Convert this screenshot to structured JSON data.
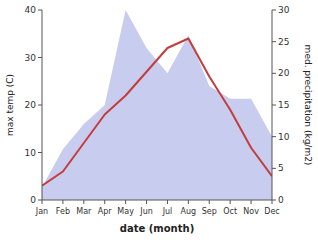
{
  "chart_data": {
    "type": "line",
    "xlabel": "date (month)",
    "ylabel": "max temp (C)",
    "y2label": "med. precipitation (kg/m2)",
    "categories": [
      "Jan",
      "Feb",
      "Mar",
      "Apr",
      "May",
      "Jun",
      "Jul",
      "Aug",
      "Sep",
      "Oct",
      "Nov",
      "Dec"
    ],
    "series": [
      {
        "type": "area",
        "axis": "y2",
        "color": "#c8ccee",
        "values": [
          2,
          8,
          12,
          15,
          30,
          24,
          20,
          26,
          18,
          16,
          16,
          10
        ]
      },
      {
        "type": "line",
        "color": "#c43c3c",
        "values": [
          3,
          6,
          12,
          18,
          22,
          27,
          32,
          34,
          26,
          19,
          11,
          5
        ]
      }
    ],
    "ylim": [
      0,
      40
    ],
    "yticks": [
      0,
      10,
      20,
      30,
      40
    ],
    "y2lim": [
      0,
      30
    ],
    "y2ticks": [
      0,
      5,
      10,
      15,
      20,
      25,
      30
    ]
  }
}
